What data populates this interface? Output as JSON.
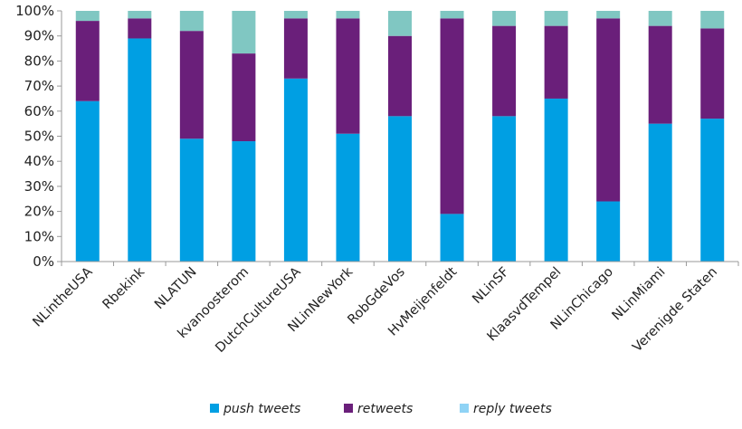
{
  "chart_data": {
    "type": "bar",
    "stacked": true,
    "percent": true,
    "categories": [
      "NLintheUSA",
      "Rbekink",
      "NLATUN",
      "kvanoosterom",
      "DutchCultureUSA",
      "NLinNewYork",
      "RobGdeVos",
      "HvMeijenfeldt",
      "NLinSF",
      "KlaasvdTempel",
      "NLinChicago",
      "NLinMiami",
      "Verenigde Staten"
    ],
    "series": [
      {
        "name": "push tweets",
        "color": "#009fe3",
        "values": [
          64,
          89,
          49,
          48,
          73,
          51,
          58,
          19,
          58,
          65,
          24,
          55,
          57
        ]
      },
      {
        "name": "retweets",
        "color": "#6a1f7a",
        "values": [
          32,
          8,
          43,
          35,
          24,
          46,
          32,
          78,
          36,
          29,
          73,
          39,
          36
        ]
      },
      {
        "name": "reply tweets",
        "color": "#80c7c2",
        "values": [
          4,
          3,
          8,
          17,
          3,
          3,
          10,
          3,
          6,
          6,
          3,
          6,
          7
        ]
      }
    ],
    "ylim": [
      0,
      100
    ],
    "yticks": [
      "0%",
      "10%",
      "20%",
      "30%",
      "40%",
      "50%",
      "60%",
      "70%",
      "80%",
      "90%",
      "100%"
    ],
    "grid": false,
    "legend_position": "bottom",
    "legend": [
      {
        "label": "push tweets",
        "swatch": "#009fe3"
      },
      {
        "label": "retweets",
        "swatch": "#6a1f7a"
      },
      {
        "label": "reply tweets",
        "swatch": "#8fd3f5"
      }
    ]
  }
}
